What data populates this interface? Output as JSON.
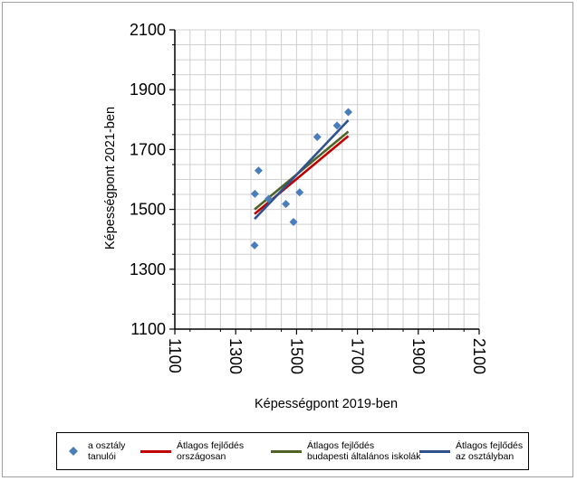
{
  "chart_data": {
    "type": "scatter",
    "xlabel": "Képességpont 2019-ben",
    "ylabel": "Képességpont 2021-ben",
    "xlim": [
      1100,
      2100
    ],
    "ylim": [
      1100,
      2100
    ],
    "xticks": [
      1100,
      1300,
      1500,
      1700,
      1900,
      2100
    ],
    "yticks": [
      1100,
      1300,
      1500,
      1700,
      1900,
      2100
    ],
    "grid": true,
    "legend_position": "bottom",
    "scatter": {
      "name": "a osztály\ntanulói",
      "color": "#4a7ebb",
      "points": [
        {
          "x": 1362,
          "y": 1380
        },
        {
          "x": 1363,
          "y": 1552
        },
        {
          "x": 1375,
          "y": 1630
        },
        {
          "x": 1408,
          "y": 1535
        },
        {
          "x": 1465,
          "y": 1518
        },
        {
          "x": 1490,
          "y": 1458
        },
        {
          "x": 1510,
          "y": 1557
        },
        {
          "x": 1568,
          "y": 1742
        },
        {
          "x": 1633,
          "y": 1780
        },
        {
          "x": 1670,
          "y": 1825
        }
      ]
    },
    "lines": [
      {
        "name": "Átlagos fejlődés\nországosan",
        "color": "#c00000",
        "x": [
          1362,
          1670
        ],
        "y": [
          1485,
          1745
        ]
      },
      {
        "name": "Átlagos fejlődés\nbudapesti általános iskolák",
        "color": "#4f6228",
        "x": [
          1362,
          1670
        ],
        "y": [
          1500,
          1760
        ]
      },
      {
        "name": "Átlagos fejlődés\naz osztályban",
        "color": "#2f528f",
        "x": [
          1362,
          1670
        ],
        "y": [
          1468,
          1798
        ]
      }
    ]
  }
}
